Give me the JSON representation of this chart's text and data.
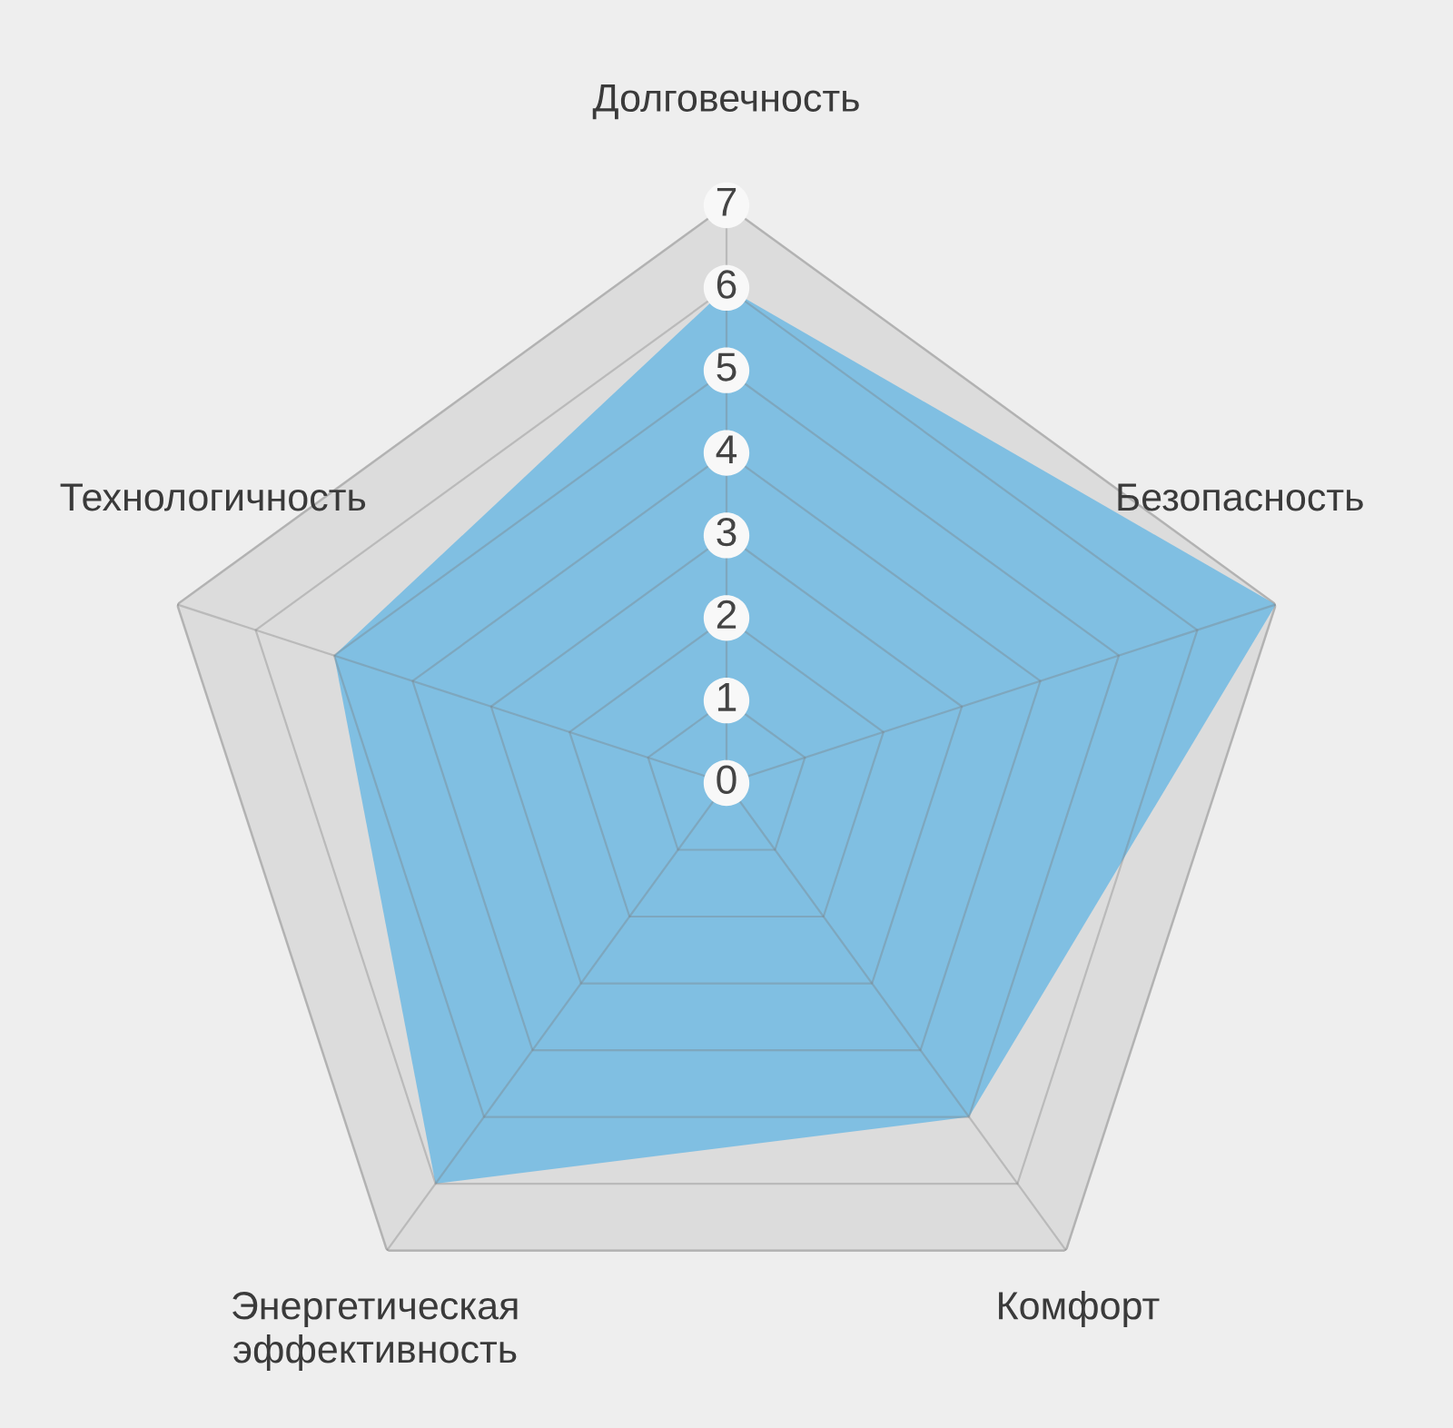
{
  "chart_data": {
    "type": "radar",
    "categories": [
      "Долговечность",
      "Безопасность",
      "Комфорт",
      "Энергетическая\nэффективность",
      "Технологичность"
    ],
    "series": [
      {
        "color": "#80bfe2",
        "values": [
          6,
          7,
          5,
          6,
          5
        ]
      }
    ],
    "ylim": [
      0,
      7
    ],
    "yticks": [
      0,
      1,
      2,
      3,
      4,
      5,
      6,
      7
    ],
    "grid": true
  }
}
